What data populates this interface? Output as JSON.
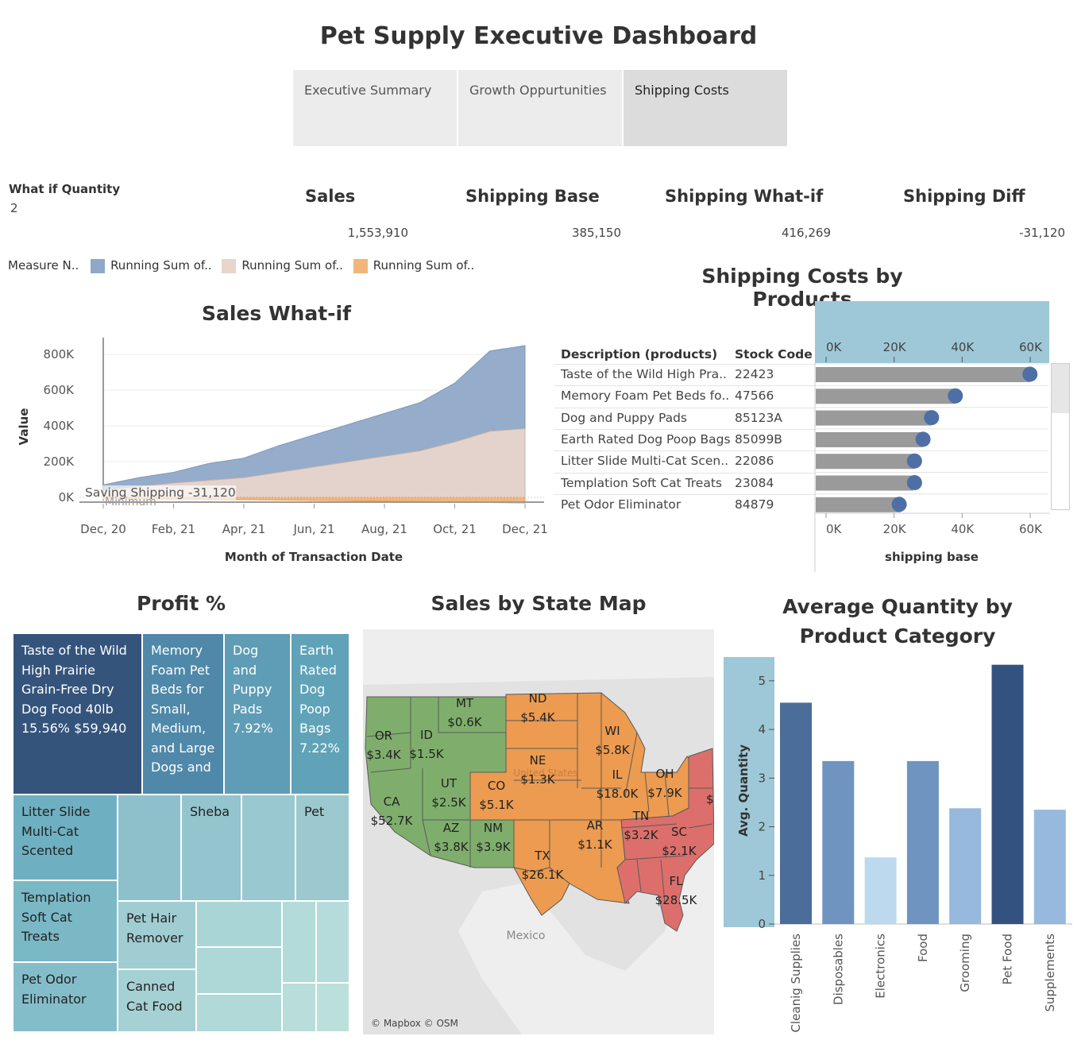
{
  "page_title": "Pet Supply Executive Dashboard",
  "tabs": [
    {
      "label": "Executive Summary",
      "active": false
    },
    {
      "label": "Growth Oppurtunities",
      "active": false
    },
    {
      "label": "Shipping Costs",
      "active": true
    }
  ],
  "what_if": {
    "label": "What if Quantity",
    "value": "2"
  },
  "kpis": {
    "sales": {
      "title": "Sales",
      "value": "1,553,910"
    },
    "shipping_base": {
      "title": "Shipping Base",
      "value": "385,150"
    },
    "shipping_whatif": {
      "title": "Shipping What-if",
      "value": "416,269"
    },
    "shipping_diff": {
      "title": "Shipping Diff",
      "value": "-31,120"
    }
  },
  "legend": {
    "label": "Measure N..",
    "items": [
      {
        "label": "Running Sum of..",
        "color": "#8fa8c8"
      },
      {
        "label": "Running Sum of..",
        "color": "#e8d5cc"
      },
      {
        "label": "Running Sum of..",
        "color": "#f2b57a"
      }
    ]
  },
  "sales_whatif": {
    "title": "Sales What-if",
    "ylabel": "Value",
    "xlabel": "Month of Transaction Date",
    "annotation": "Saving Shipping -31,120",
    "minimum_label": "Minimum"
  },
  "shipping_by_products": {
    "title": "Shipping Costs by Products",
    "col_description": "Description (products)",
    "col_stock": "Stock Code",
    "xlabel": "shipping base",
    "axis_ticks": [
      "0K",
      "20K",
      "40K",
      "60K"
    ]
  },
  "profit": {
    "title": "Profit %",
    "cells": [
      {
        "text": "Taste of the Wild High Prairie Grain-Free Dry Dog Food 40lb 15.56% $59,940"
      },
      {
        "text": "Memory Foam Pet Beds for Small, Medium, and Large Dogs and"
      },
      {
        "text": "Dog and Puppy Pads 7.92%"
      },
      {
        "text": "Earth Rated Dog Poop Bags 7.22%"
      },
      {
        "text": "Litter Slide Multi-Cat Scented"
      },
      {
        "text": "Sheba"
      },
      {
        "text": "Pet"
      },
      {
        "text": "Templation Soft Cat Treats"
      },
      {
        "text": "Pet Hair Remover"
      },
      {
        "text": "Pet Odor Eliminator"
      },
      {
        "text": "Canned Cat Food"
      }
    ]
  },
  "map": {
    "title": "Sales by State Map",
    "attribution": "© Mapbox © OSM",
    "mexico_label": "Mexico",
    "us_label": "United States",
    "states": [
      {
        "abbr": "MT",
        "value": "$0.6K"
      },
      {
        "abbr": "ND",
        "value": "$5.4K"
      },
      {
        "abbr": "OR",
        "value": "$3.4K"
      },
      {
        "abbr": "ID",
        "value": "$1.5K"
      },
      {
        "abbr": "WI",
        "value": "$5.8K"
      },
      {
        "abbr": "NE",
        "value": "$1.3K"
      },
      {
        "abbr": "UT",
        "value": "$2.5K"
      },
      {
        "abbr": "CO",
        "value": "$5.1K"
      },
      {
        "abbr": "IL",
        "value": "$18.0K"
      },
      {
        "abbr": "OH",
        "value": "$7.9K"
      },
      {
        "abbr": "CA",
        "value": "$52.7K"
      },
      {
        "abbr": "TN",
        "value": "$3.2K"
      },
      {
        "abbr": "AZ",
        "value": "$3.8K"
      },
      {
        "abbr": "NM",
        "value": "$3.9K"
      },
      {
        "abbr": "AR",
        "value": "$1.1K"
      },
      {
        "abbr": "SC",
        "value": "$2.1K"
      },
      {
        "abbr": "TX",
        "value": "$26.1K"
      },
      {
        "abbr": "FL",
        "value": "$28.5K"
      }
    ],
    "edge_value": "$",
    "colors": {
      "west": "#7fae6c",
      "central": "#ec9b50",
      "east": "#dc6f6b"
    }
  },
  "avg_qty": {
    "title": "Average Quantity by Product Category",
    "ylabel": "Avg. Quantity"
  },
  "chart_data": [
    {
      "type": "area",
      "title": "Sales What-if",
      "xlabel": "Month of Transaction Date",
      "ylabel": "Value",
      "x": [
        "Dec, 20",
        "Jan, 21",
        "Feb, 21",
        "Mar, 21",
        "Apr, 21",
        "May, 21",
        "Jun, 21",
        "Jul, 21",
        "Aug, 21",
        "Sep, 21",
        "Oct, 21",
        "Nov, 21",
        "Dec, 21"
      ],
      "x_tick_labels": [
        "Dec, 20",
        "Feb, 21",
        "Apr, 21",
        "Jun, 21",
        "Aug, 21",
        "Oct, 21",
        "Dec, 21"
      ],
      "y_tick_labels": [
        "0K",
        "200K",
        "400K",
        "600K",
        "800K"
      ],
      "ylim": [
        0,
        850000
      ],
      "series": [
        {
          "values": [
            70000,
            110000,
            140000,
            190000,
            220000,
            290000,
            350000,
            410000,
            470000,
            530000,
            640000,
            820000,
            850000
          ],
          "color": "#8fa8c8"
        },
        {
          "values": [
            40000,
            60000,
            80000,
            95000,
            110000,
            140000,
            170000,
            200000,
            230000,
            260000,
            310000,
            370000,
            385000
          ],
          "color": "#e8d5cc"
        },
        {
          "values": [
            -5000,
            -8000,
            -10000,
            -11000,
            -13000,
            -15000,
            -17000,
            -19000,
            -21000,
            -23000,
            -26000,
            -29000,
            -31120
          ],
          "color": "#f2b57a"
        }
      ]
    },
    {
      "type": "bar",
      "title": "Shipping Costs by Products",
      "xlabel": "shipping base",
      "x_tick_labels": [
        "0K",
        "20K",
        "40K",
        "60K"
      ],
      "xlim": [
        0,
        65000
      ],
      "categories": [
        "Taste of the Wild High Pra..",
        "Memory Foam Pet Beds fo..",
        "Dog and Puppy Pads",
        "Earth Rated Dog Poop Bags",
        "Litter Slide Multi-Cat Scen..",
        "Templation Soft Cat Treats",
        "Pet Odor Eliminator"
      ],
      "stock_codes": [
        "22423",
        "47566",
        "85123A",
        "85099B",
        "22086",
        "23084",
        "84879"
      ],
      "bar_values": [
        59940,
        38000,
        31000,
        28500,
        26000,
        25500,
        22000
      ],
      "dot_values": [
        59940,
        38000,
        31000,
        28500,
        26000,
        26000,
        21500
      ]
    },
    {
      "type": "bar",
      "title": "Average Quantity by Product Category",
      "ylabel": "Avg. Quantity",
      "categories": [
        "Cleanig Supplies",
        "Disposables",
        "Electronics",
        "Food",
        "Grooming",
        "Pet Food",
        "Supplements"
      ],
      "values": [
        4.55,
        3.35,
        1.37,
        3.35,
        2.38,
        5.33,
        2.35
      ],
      "y_tick_labels": [
        "0",
        "1",
        "2",
        "3",
        "4",
        "5"
      ],
      "ylim": [
        0,
        5.6
      ],
      "colors": [
        "#4a6d9a",
        "#6f94bf",
        "#bcd9ee",
        "#6f94bf",
        "#96b9dd",
        "#33527f",
        "#96b9dd"
      ]
    }
  ]
}
